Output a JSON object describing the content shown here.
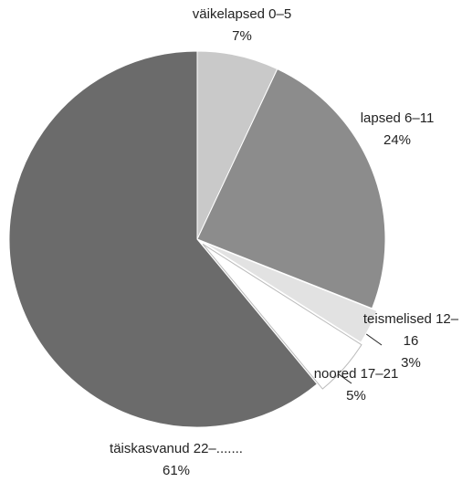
{
  "chart_data": {
    "type": "pie",
    "categories": [
      "väikelapsed 0–5",
      "lapsed 6–11",
      "teismelised 12–16",
      "noored 17–21",
      "täiskasvanud 22–......."
    ],
    "values": [
      7,
      24,
      3,
      5,
      61
    ],
    "value_labels": [
      "7%",
      "24%",
      "3%",
      "5%",
      "61%"
    ],
    "colors": [
      "#c9c9c9",
      "#8c8c8c",
      "#e2e2e2",
      "#ffffff",
      "#6b6b6b"
    ]
  }
}
